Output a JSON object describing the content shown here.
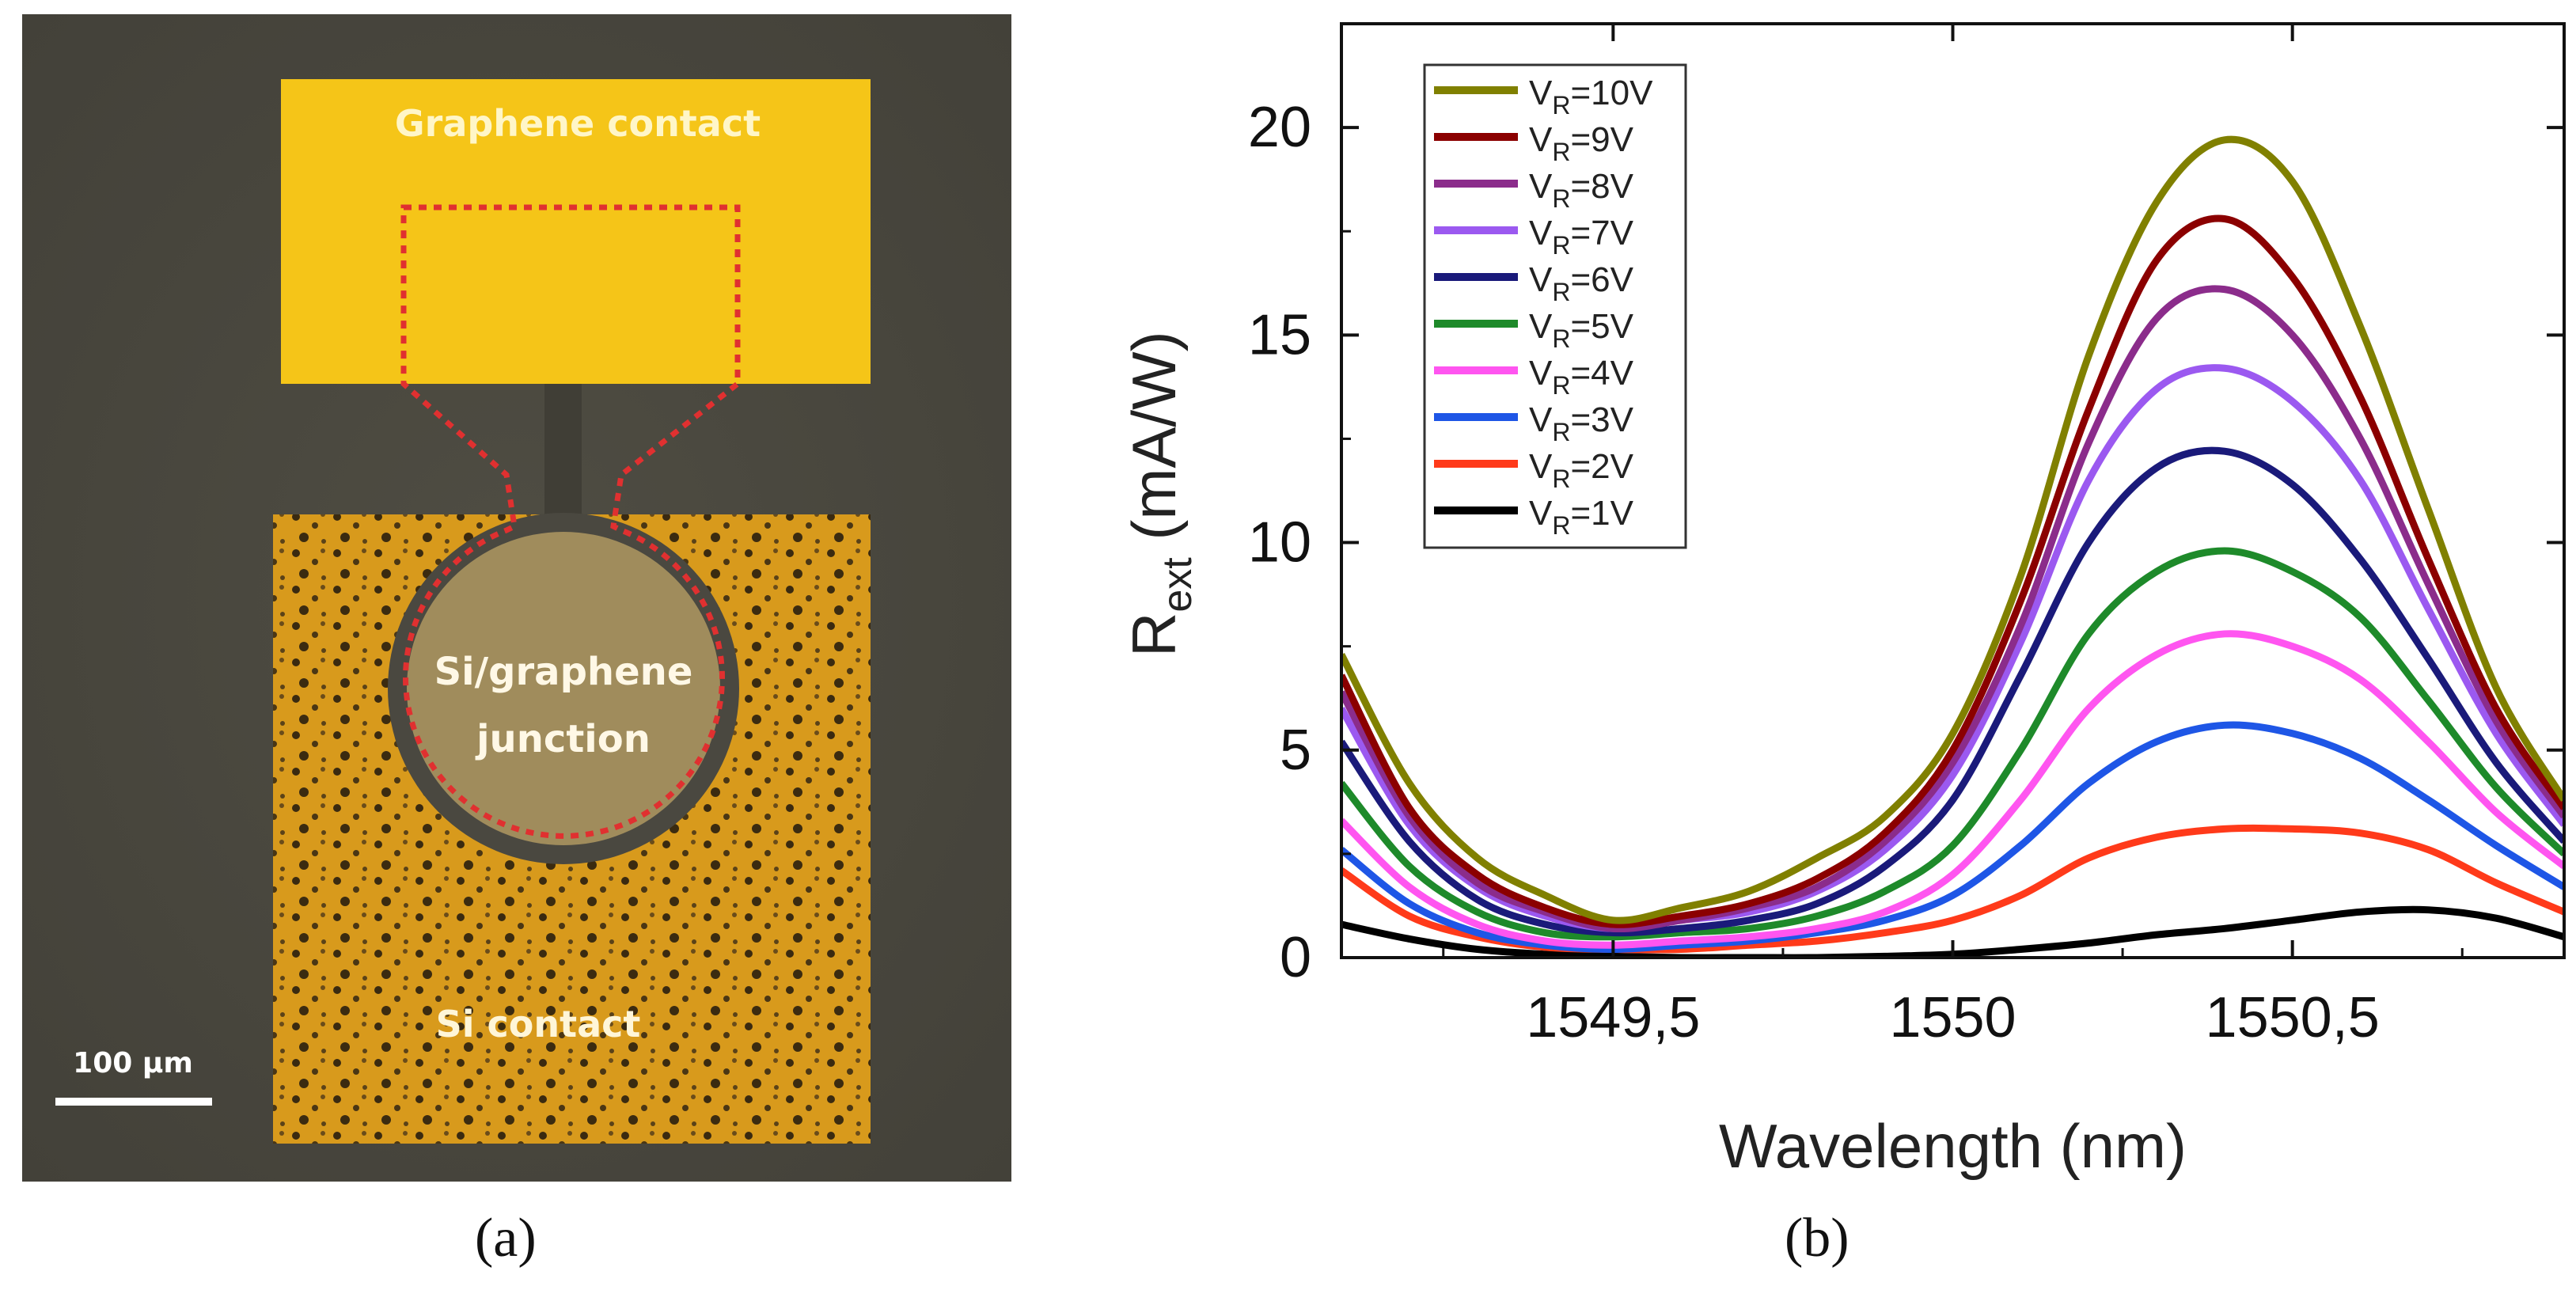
{
  "panel_a": {
    "graphene_contact": "Graphene contact",
    "junction_line1": "Si/graphene",
    "junction_line2": "junction",
    "si_contact": "Si contact",
    "scale_bar": "100 μm",
    "caption": "(a)"
  },
  "panel_b": {
    "caption": "(b)"
  },
  "chart_data": {
    "type": "line",
    "title": "",
    "xlabel": "Wavelength (nm)",
    "ylabel_main": "R",
    "ylabel_sub": "ext",
    "ylabel_unit": "(mA/W)",
    "xlim": [
      1549.1,
      1550.9
    ],
    "ylim": [
      0,
      22.5
    ],
    "x_ticks": [
      {
        "value": 1549.5,
        "label": "1549,5"
      },
      {
        "value": 1550.0,
        "label": "1550"
      },
      {
        "value": 1550.5,
        "label": "1550,5"
      }
    ],
    "y_ticks": [
      {
        "value": 0,
        "label": "0"
      },
      {
        "value": 5,
        "label": "5"
      },
      {
        "value": 10,
        "label": "10"
      },
      {
        "value": 15,
        "label": "15"
      },
      {
        "value": 20,
        "label": "20"
      }
    ],
    "grid": false,
    "legend": "top-left",
    "x": [
      1549.1,
      1549.2,
      1549.3,
      1549.4,
      1549.5,
      1549.6,
      1549.7,
      1549.8,
      1549.9,
      1550.0,
      1550.1,
      1550.2,
      1550.3,
      1550.4,
      1550.5,
      1550.6,
      1550.7,
      1550.8,
      1550.9
    ],
    "series": [
      {
        "name_main": "V",
        "name_sub": "R",
        "name_value": "=10V",
        "color": "#808000",
        "values": [
          7.3,
          4.2,
          2.4,
          1.5,
          0.9,
          1.2,
          1.6,
          2.4,
          3.4,
          5.4,
          9.2,
          14.5,
          18.2,
          19.7,
          18.7,
          15.2,
          10.8,
          6.5,
          3.8
        ]
      },
      {
        "name_main": "V",
        "name_sub": "R",
        "name_value": "=9V",
        "color": "#8b0000",
        "values": [
          6.8,
          3.6,
          2.0,
          1.2,
          0.8,
          1.0,
          1.3,
          1.9,
          3.0,
          5.0,
          8.6,
          13.2,
          16.8,
          17.8,
          16.4,
          13.5,
          9.6,
          6.0,
          3.6
        ]
      },
      {
        "name_main": "V",
        "name_sub": "R",
        "name_value": "=8V",
        "color": "#8b2c8b",
        "values": [
          6.4,
          3.4,
          1.8,
          1.1,
          0.7,
          0.9,
          1.2,
          1.7,
          2.8,
          4.7,
          8.0,
          12.4,
          15.4,
          16.1,
          15.0,
          12.5,
          9.0,
          5.7,
          3.4
        ]
      },
      {
        "name_main": "V",
        "name_sub": "R",
        "name_value": "=7V",
        "color": "#9b59f0",
        "values": [
          6.0,
          3.2,
          1.7,
          1.0,
          0.7,
          0.9,
          1.1,
          1.6,
          2.6,
          4.4,
          7.6,
          11.5,
          13.7,
          14.2,
          13.4,
          11.5,
          8.4,
          5.4,
          3.2
        ]
      },
      {
        "name_main": "V",
        "name_sub": "R",
        "name_value": "=6V",
        "color": "#1a1a7a",
        "values": [
          5.2,
          2.8,
          1.4,
          0.8,
          0.6,
          0.7,
          0.9,
          1.3,
          2.2,
          3.8,
          6.8,
          10.0,
          11.8,
          12.2,
          11.4,
          9.6,
          7.2,
          4.7,
          2.8
        ]
      },
      {
        "name_main": "V",
        "name_sub": "R",
        "name_value": "=5V",
        "color": "#1e8a2a",
        "values": [
          4.2,
          2.2,
          1.1,
          0.6,
          0.5,
          0.6,
          0.7,
          1.0,
          1.6,
          2.7,
          5.0,
          7.8,
          9.3,
          9.8,
          9.3,
          8.2,
          6.2,
          4.1,
          2.5
        ]
      },
      {
        "name_main": "V",
        "name_sub": "R",
        "name_value": "=4V",
        "color": "#ff55f0",
        "values": [
          3.3,
          1.7,
          0.8,
          0.4,
          0.3,
          0.4,
          0.5,
          0.7,
          1.1,
          2.0,
          3.8,
          6.0,
          7.3,
          7.8,
          7.5,
          6.7,
          5.2,
          3.5,
          2.2
        ]
      },
      {
        "name_main": "V",
        "name_sub": "R",
        "name_value": "=3V",
        "color": "#1e56e6",
        "values": [
          2.6,
          1.3,
          0.6,
          0.3,
          0.2,
          0.3,
          0.4,
          0.6,
          0.9,
          1.5,
          2.7,
          4.2,
          5.2,
          5.6,
          5.4,
          4.8,
          3.8,
          2.7,
          1.7
        ]
      },
      {
        "name_main": "V",
        "name_sub": "R",
        "name_value": "=2V",
        "color": "#ff3a1a",
        "values": [
          2.1,
          1.0,
          0.5,
          0.25,
          0.2,
          0.2,
          0.3,
          0.4,
          0.6,
          0.9,
          1.5,
          2.4,
          2.9,
          3.1,
          3.1,
          3.0,
          2.6,
          1.8,
          1.1
        ]
      },
      {
        "name_main": "V",
        "name_sub": "R",
        "name_value": "=1V",
        "color": "#000000",
        "values": [
          0.8,
          0.45,
          0.2,
          0.08,
          0.03,
          0.0,
          0.0,
          0.0,
          0.03,
          0.08,
          0.2,
          0.35,
          0.55,
          0.7,
          0.9,
          1.1,
          1.15,
          0.95,
          0.5
        ]
      }
    ]
  }
}
